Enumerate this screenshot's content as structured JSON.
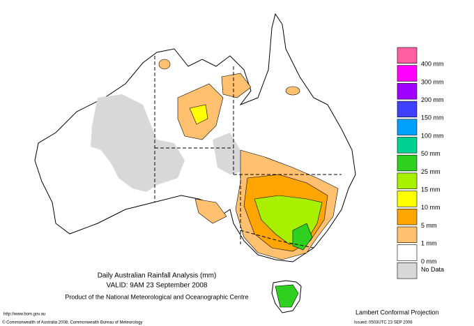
{
  "map": {
    "title": "Daily Australian Rainfall Analysis (mm)",
    "valid": "VALID: 9AM 23 September 2008",
    "product": "Product of the National Meteorological and Oceanographic Centre",
    "url": "http://www.bom.gov.au",
    "copyright": "© Commonwealth of Australia 2008, Commonwealth Bureau of Meteorology",
    "projection": "Lambert Conformal Projection",
    "issued": "Issued: 0503UTC 23 SEP 2008",
    "legend": {
      "labels": [
        "400 mm",
        "300 mm",
        "200 mm",
        "150 mm",
        "100 mm",
        "50 mm",
        "25 mm",
        "15 mm",
        "10 mm",
        "5 mm",
        "1 mm",
        "0 mm",
        "No Data"
      ],
      "colors": [
        "#ff5fa0",
        "#ff00ff",
        "#a000ff",
        "#4040ff",
        "#00a0ff",
        "#00d090",
        "#30d020",
        "#a8f000",
        "#ffff00",
        "#ffa500",
        "#ffc070",
        "#ffffff",
        "#d8d8d8"
      ]
    }
  }
}
